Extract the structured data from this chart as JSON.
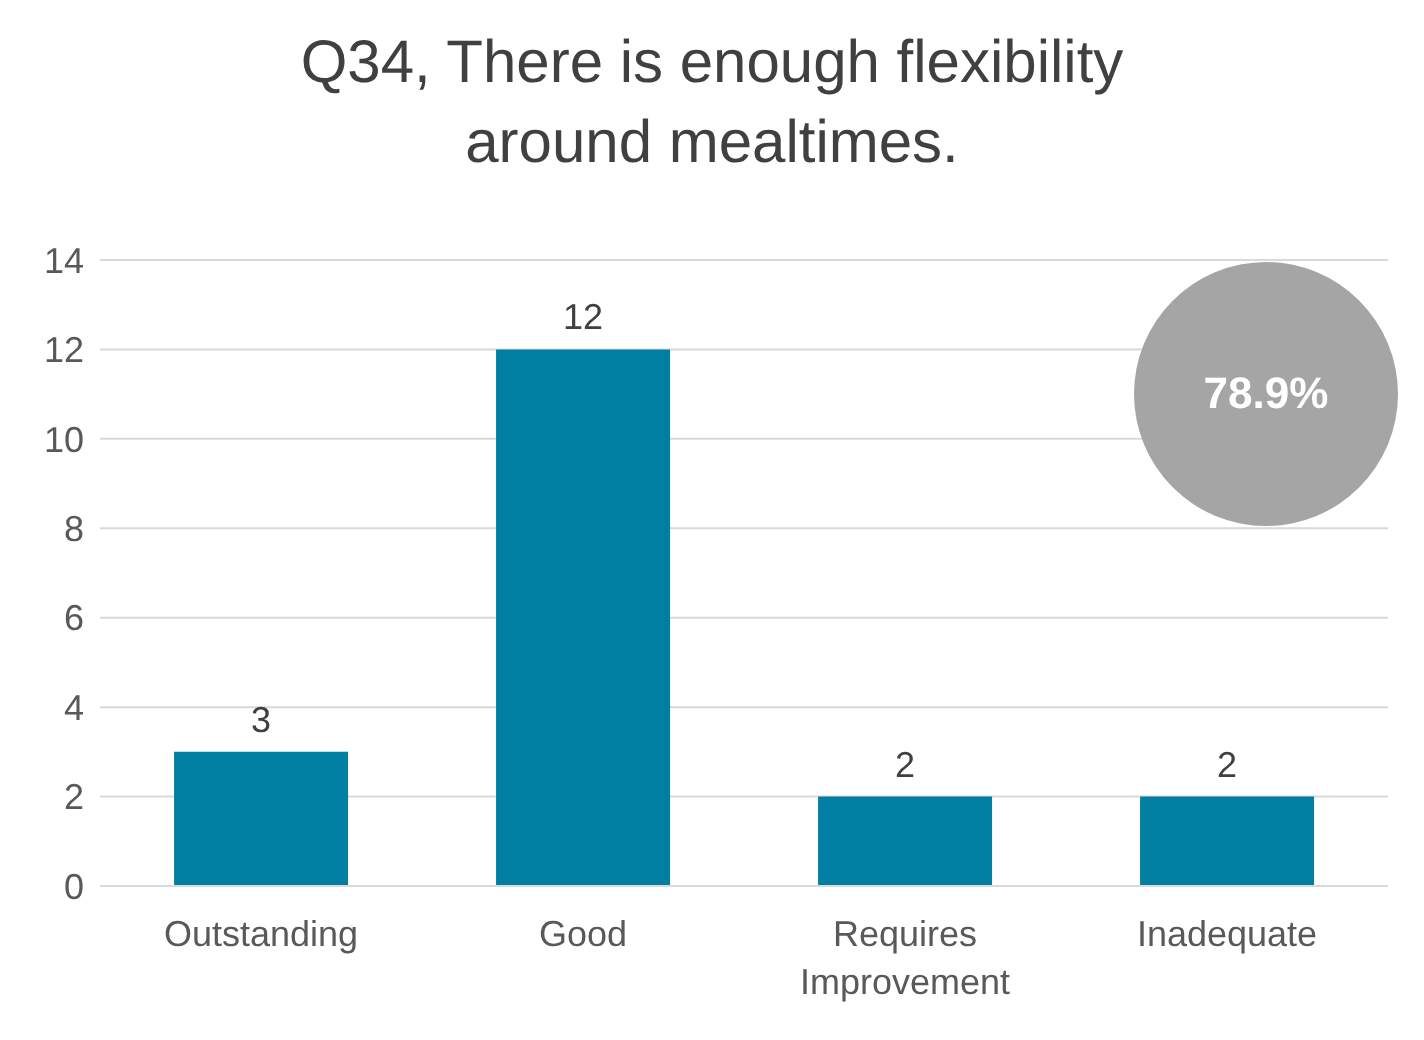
{
  "chart_data": {
    "type": "bar",
    "title": "Q34, There is enough flexibility around mealtimes.",
    "categories": [
      "Outstanding",
      "Good",
      "Requires Improvement",
      "Inadequate"
    ],
    "values": [
      3,
      12,
      2,
      2
    ],
    "color": "#007fa3",
    "ylim": [
      0,
      14
    ],
    "yticks": [
      0,
      2,
      4,
      6,
      8,
      10,
      12,
      14
    ],
    "grid": "y",
    "data_labels": true,
    "annotations": [
      "78.9%"
    ]
  }
}
